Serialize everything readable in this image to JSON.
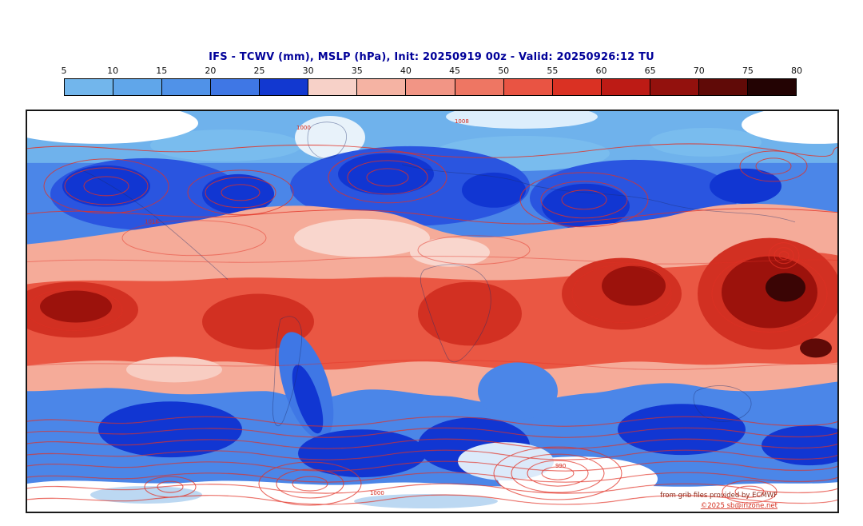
{
  "title": "IFS - TCWV (mm), MSLP (hPa), Init: 20250919 00z - Valid: 20250926:12 TU",
  "title_color": "#000099",
  "colorbar": {
    "units": "mm",
    "tick_labels": [
      "5",
      "10",
      "15",
      "20",
      "25",
      "30",
      "35",
      "40",
      "45",
      "50",
      "55",
      "60",
      "65",
      "70",
      "75",
      "80"
    ],
    "colors": [
      "#72b6ec",
      "#60a6ea",
      "#5092e8",
      "#3f77e5",
      "#1238d0",
      "#f7d1c8",
      "#f5b3a3",
      "#f29585",
      "#ee7663",
      "#e95443",
      "#da3123",
      "#bd1b15",
      "#93110d",
      "#600a07",
      "#230303"
    ]
  },
  "map_labels": [
    "1000",
    "1008",
    "1016",
    "1000",
    "990"
  ],
  "credits": {
    "line1": "from grib files provided by ECMWF",
    "line2": "©2025 sb@irizone.net"
  },
  "chart_data": {
    "type": "heatmap",
    "title": "IFS - TCWV (mm), MSLP (hPa), Init: 20250919 00z - Valid: 20250926:12 TU",
    "model": "IFS",
    "fields": [
      {
        "name": "TCWV",
        "units": "mm",
        "style": "filled color shading"
      },
      {
        "name": "MSLP",
        "units": "hPa",
        "style": "red contour lines with inline labels"
      }
    ],
    "init_time": "20250919 00z",
    "valid_time": "20250926:12 TU",
    "projection": "global equirectangular world map",
    "colorbar": {
      "ticks": [
        5,
        10,
        15,
        20,
        25,
        30,
        35,
        40,
        45,
        50,
        55,
        60,
        65,
        70,
        75,
        80
      ],
      "units": "mm",
      "orientation": "horizontal",
      "position": "top",
      "colors": [
        "#72b6ec",
        "#60a6ea",
        "#5092e8",
        "#3f77e5",
        "#1238d0",
        "#f7d1c8",
        "#f5b3a3",
        "#f29585",
        "#ee7663",
        "#e95443",
        "#da3123",
        "#bd1b15",
        "#93110d",
        "#600a07",
        "#230303"
      ]
    },
    "visible_contour_labels": [
      "1000",
      "1008",
      "1016",
      "990"
    ],
    "pattern_summary": "High TCWV (40-80 mm, red to near-black shading) along the tropical belt with darkest values over the west Pacific, India and equatorial Africa/Amazon; low TCWV (5-30 mm, blue shading) across mid-latitudes with deep-blue pockets in storm systems; very dry white areas over polar latitudes; dense red MSLP isobars around Southern Ocean and North Pacific/Atlantic lows",
    "source_note": "from grib files provided by ECMWF"
  }
}
